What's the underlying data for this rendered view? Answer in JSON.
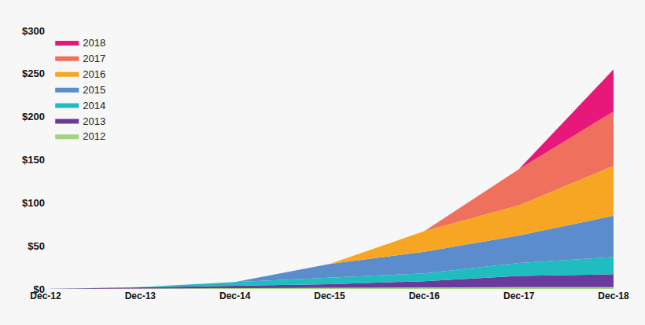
{
  "chart_data": {
    "type": "area",
    "stacked": true,
    "grid": false,
    "legend": "top left",
    "x": [
      "Dec-12",
      "Dec-13",
      "Dec-14",
      "Dec-15",
      "Dec-16",
      "Dec-17",
      "Dec-18"
    ],
    "ylim": [
      0,
      300
    ],
    "yticks": [
      {
        "value": 0,
        "label": "$0"
      },
      {
        "value": 50,
        "label": "$50"
      },
      {
        "value": 100,
        "label": "$100"
      },
      {
        "value": 150,
        "label": "$150"
      },
      {
        "value": 200,
        "label": "$200"
      },
      {
        "value": 250,
        "label": "$250"
      },
      {
        "value": 300,
        "label": "$300"
      }
    ],
    "series": [
      {
        "name": "2012",
        "color": "#a3d47f",
        "values": [
          0,
          0.5,
          0.5,
          1,
          1.5,
          2,
          2
        ]
      },
      {
        "name": "2013",
        "color": "#6a3a9c",
        "values": [
          0,
          1.5,
          3,
          4.5,
          7.5,
          13,
          15
        ]
      },
      {
        "name": "2014",
        "color": "#1fbcc0",
        "values": [
          null,
          0,
          4.5,
          7.5,
          9,
          15,
          20
        ]
      },
      {
        "name": "2015",
        "color": "#5b8ccc",
        "values": [
          null,
          null,
          0,
          16,
          25,
          32,
          48
        ]
      },
      {
        "name": "2016",
        "color": "#f7a623",
        "values": [
          null,
          null,
          null,
          0,
          24,
          35,
          58
        ]
      },
      {
        "name": "2017",
        "color": "#f0705e",
        "values": [
          null,
          null,
          null,
          null,
          0,
          42,
          63
        ]
      },
      {
        "name": "2018",
        "color": "#e8187a",
        "values": [
          null,
          null,
          null,
          null,
          null,
          0,
          49
        ]
      }
    ]
  }
}
